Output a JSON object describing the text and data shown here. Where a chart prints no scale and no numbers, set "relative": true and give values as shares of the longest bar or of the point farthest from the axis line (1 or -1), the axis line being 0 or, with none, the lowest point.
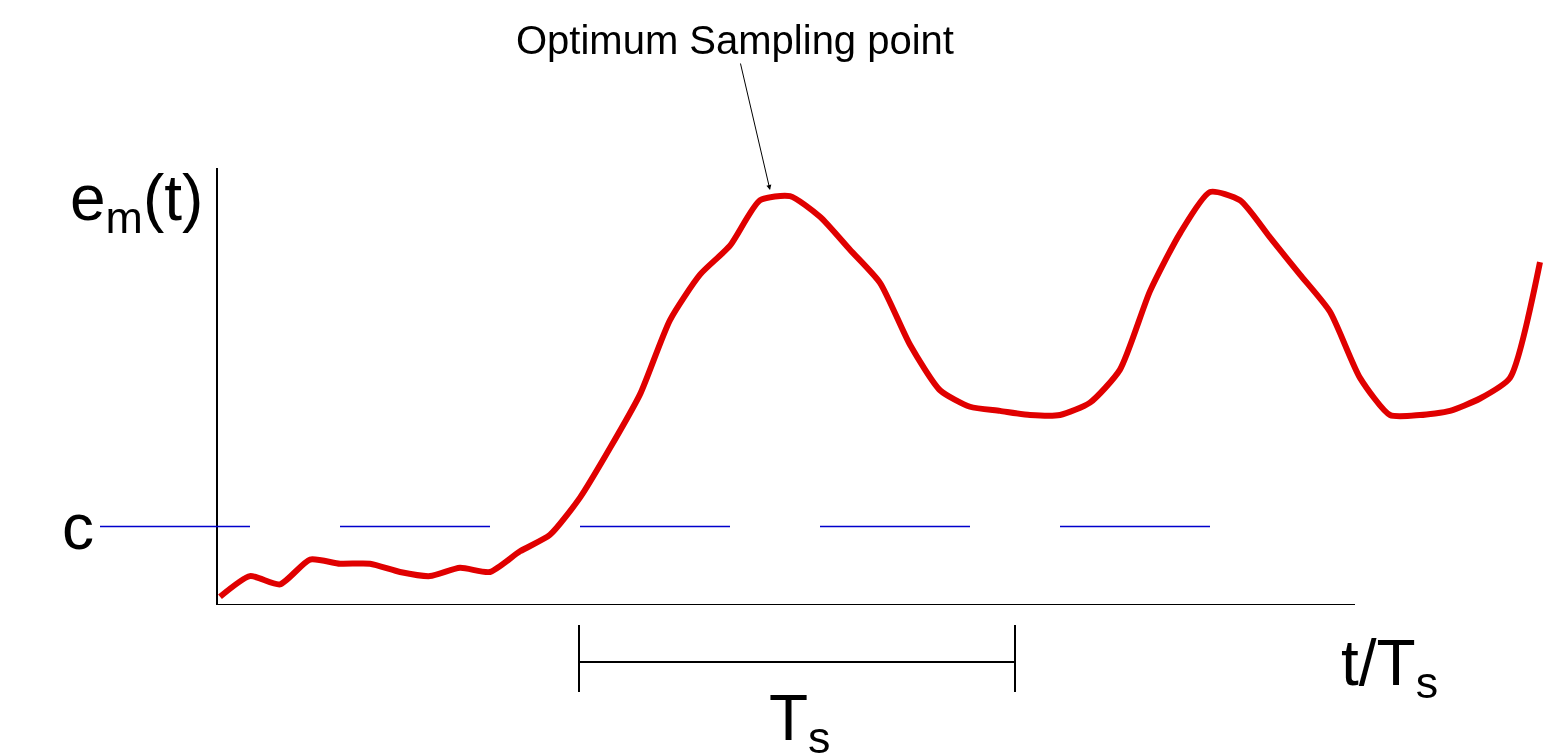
{
  "chart_data": {
    "type": "line",
    "relative": true,
    "xlabel": "t/T$_{s}$",
    "ylabel": "e$_{m}$(t)",
    "annotations": [
      "Optimum Sampling point",
      "T$_{s}$"
    ],
    "categories": [
      null,
      null,
      null,
      null,
      null,
      null,
      null,
      null,
      null,
      null,
      null,
      null,
      null,
      null,
      null,
      null,
      null,
      null,
      null,
      null,
      null,
      null,
      null,
      null,
      null,
      null,
      null,
      null,
      null,
      null,
      null,
      null,
      null,
      null,
      null,
      null,
      null,
      null,
      null,
      null,
      null,
      null,
      null,
      null,
      null
    ],
    "series": [
      {
        "color": "#e00000",
        "values": [
          0.02,
          0.07,
          0.05,
          0.11,
          0.1,
          0.1,
          0.08,
          0.07,
          0.09,
          0.08,
          0.13,
          0.17,
          0.26,
          0.38,
          0.51,
          0.69,
          0.8,
          0.87,
          0.98,
          0.99,
          0.94,
          0.86,
          0.78,
          0.63,
          0.52,
          0.48,
          0.47,
          0.46,
          0.46,
          0.49,
          0.57,
          0.76,
          0.9,
          1.0,
          0.98,
          0.89,
          0.8,
          0.71,
          0.55,
          0.46,
          0.46,
          0.47,
          0.5,
          0.55,
          0.83
        ]
      }
    ],
    "ref_lines": [
      {
        "axis": "y",
        "value": 0.19,
        "label": "c",
        "color": "#0000cc",
        "line_style": "dashed"
      }
    ],
    "legend": false,
    "marker": "none",
    "line_style": "solid"
  }
}
